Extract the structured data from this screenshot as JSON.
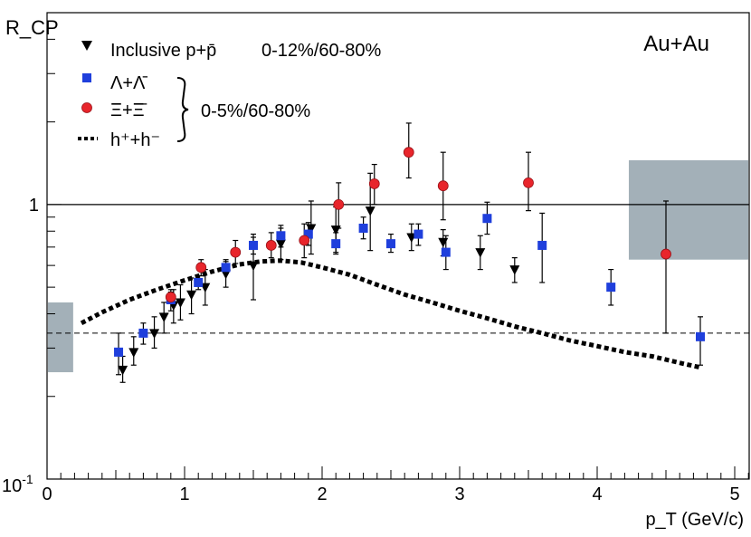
{
  "chart_data": {
    "type": "scatter",
    "title": "Au+Au",
    "xlabel": "p_T (GeV/c)",
    "ylabel": "R_CP",
    "xlim": [
      0,
      5.1
    ],
    "ylim": [
      0.1,
      5
    ],
    "yscale": "log",
    "x_ticks": [
      "0",
      "1",
      "2",
      "3",
      "4",
      "5"
    ],
    "y_ticks": [
      "10^-1",
      "1"
    ],
    "centrality_groups": [
      "0-12%/60-80%",
      "0-5%/60-80%"
    ],
    "series": [
      {
        "name": "Inclusive p+p̄",
        "marker": "down-triangle",
        "color": "#000000",
        "centrality": "0-12%/60-80%",
        "points": [
          {
            "x": 0.55,
            "y": 0.25,
            "ylo": 0.225,
            "yhi": 0.28
          },
          {
            "x": 0.63,
            "y": 0.29,
            "ylo": 0.26,
            "yhi": 0.33
          },
          {
            "x": 0.78,
            "y": 0.34,
            "ylo": 0.3,
            "yhi": 0.39
          },
          {
            "x": 0.85,
            "y": 0.39,
            "ylo": 0.34,
            "yhi": 0.44
          },
          {
            "x": 0.92,
            "y": 0.43,
            "ylo": 0.37,
            "yhi": 0.49
          },
          {
            "x": 0.97,
            "y": 0.44,
            "ylo": 0.38,
            "yhi": 0.51
          },
          {
            "x": 1.05,
            "y": 0.47,
            "ylo": 0.4,
            "yhi": 0.54
          },
          {
            "x": 1.15,
            "y": 0.5,
            "ylo": 0.43,
            "yhi": 0.58
          },
          {
            "x": 1.3,
            "y": 0.56,
            "ylo": 0.5,
            "yhi": 0.63
          },
          {
            "x": 1.5,
            "y": 0.6,
            "ylo": 0.45,
            "yhi": 0.78
          },
          {
            "x": 1.7,
            "y": 0.72,
            "ylo": 0.63,
            "yhi": 0.82
          },
          {
            "x": 1.92,
            "y": 0.82,
            "ylo": 0.66,
            "yhi": 1.03
          },
          {
            "x": 2.1,
            "y": 0.81,
            "ylo": 0.67,
            "yhi": 0.98
          },
          {
            "x": 2.35,
            "y": 0.95,
            "ylo": 0.68,
            "yhi": 1.3
          },
          {
            "x": 2.65,
            "y": 0.76,
            "ylo": 0.68,
            "yhi": 0.85
          },
          {
            "x": 2.88,
            "y": 0.73,
            "ylo": 0.65,
            "yhi": 0.81
          },
          {
            "x": 3.15,
            "y": 0.67,
            "ylo": 0.58,
            "yhi": 0.77
          },
          {
            "x": 3.4,
            "y": 0.58,
            "ylo": 0.52,
            "yhi": 0.64
          }
        ]
      },
      {
        "name": "Λ+Λ̄",
        "marker": "square",
        "color": "#1f3fdc",
        "centrality": "0-5%/60-80%",
        "points": [
          {
            "x": 0.52,
            "y": 0.29,
            "ylo": 0.24,
            "yhi": 0.34
          },
          {
            "x": 0.7,
            "y": 0.34,
            "ylo": 0.31,
            "yhi": 0.37
          },
          {
            "x": 0.9,
            "y": 0.45,
            "ylo": 0.41,
            "yhi": 0.49
          },
          {
            "x": 1.1,
            "y": 0.52,
            "ylo": 0.49,
            "yhi": 0.55
          },
          {
            "x": 1.3,
            "y": 0.59,
            "ylo": 0.56,
            "yhi": 0.62
          },
          {
            "x": 1.5,
            "y": 0.71,
            "ylo": 0.66,
            "yhi": 0.76
          },
          {
            "x": 1.7,
            "y": 0.77,
            "ylo": 0.7,
            "yhi": 0.84
          },
          {
            "x": 1.9,
            "y": 0.78,
            "ylo": 0.71,
            "yhi": 0.86
          },
          {
            "x": 2.1,
            "y": 0.72,
            "ylo": 0.66,
            "yhi": 0.79
          },
          {
            "x": 2.3,
            "y": 0.82,
            "ylo": 0.75,
            "yhi": 0.9
          },
          {
            "x": 2.5,
            "y": 0.72,
            "ylo": 0.67,
            "yhi": 0.78
          },
          {
            "x": 2.7,
            "y": 0.78,
            "ylo": 0.71,
            "yhi": 0.85
          },
          {
            "x": 2.9,
            "y": 0.67,
            "ylo": 0.58,
            "yhi": 0.77
          },
          {
            "x": 3.2,
            "y": 0.89,
            "ylo": 0.78,
            "yhi": 1.02
          },
          {
            "x": 3.6,
            "y": 0.71,
            "ylo": 0.52,
            "yhi": 0.93
          },
          {
            "x": 4.1,
            "y": 0.5,
            "ylo": 0.43,
            "yhi": 0.58
          },
          {
            "x": 4.75,
            "y": 0.33,
            "ylo": 0.26,
            "yhi": 0.39
          }
        ]
      },
      {
        "name": "Ξ+Ξ̄",
        "marker": "circle",
        "color": "#e8252b",
        "centrality": "0-5%/60-80%",
        "points": [
          {
            "x": 0.9,
            "y": 0.46,
            "ylo": 0.44,
            "yhi": 0.48
          },
          {
            "x": 1.12,
            "y": 0.59,
            "ylo": 0.55,
            "yhi": 0.63
          },
          {
            "x": 1.37,
            "y": 0.67,
            "ylo": 0.61,
            "yhi": 0.74
          },
          {
            "x": 1.63,
            "y": 0.71,
            "ylo": 0.64,
            "yhi": 0.79
          },
          {
            "x": 1.87,
            "y": 0.74,
            "ylo": 0.64,
            "yhi": 0.85
          },
          {
            "x": 2.12,
            "y": 1.0,
            "ylo": 0.82,
            "yhi": 1.2
          },
          {
            "x": 2.38,
            "y": 1.19,
            "ylo": 1.0,
            "yhi": 1.4
          },
          {
            "x": 2.63,
            "y": 1.55,
            "ylo": 1.25,
            "yhi": 1.98
          },
          {
            "x": 2.88,
            "y": 1.17,
            "ylo": 0.88,
            "yhi": 1.55
          },
          {
            "x": 3.5,
            "y": 1.2,
            "ylo": 0.95,
            "yhi": 1.55
          },
          {
            "x": 4.5,
            "y": 0.66,
            "ylo": 0.34,
            "yhi": 1.03
          }
        ]
      },
      {
        "name": "h⁺+h⁻",
        "marker": "dashed-line",
        "color": "#000000",
        "centrality": "0-5%/60-80%",
        "points": [
          {
            "x": 0.25,
            "y": 0.37
          },
          {
            "x": 0.4,
            "y": 0.405
          },
          {
            "x": 0.6,
            "y": 0.45
          },
          {
            "x": 0.8,
            "y": 0.49
          },
          {
            "x": 1.0,
            "y": 0.53
          },
          {
            "x": 1.2,
            "y": 0.57
          },
          {
            "x": 1.4,
            "y": 0.605
          },
          {
            "x": 1.55,
            "y": 0.62
          },
          {
            "x": 1.7,
            "y": 0.625
          },
          {
            "x": 1.85,
            "y": 0.615
          },
          {
            "x": 2.0,
            "y": 0.59
          },
          {
            "x": 2.2,
            "y": 0.555
          },
          {
            "x": 2.4,
            "y": 0.51
          },
          {
            "x": 2.6,
            "y": 0.47
          },
          {
            "x": 2.8,
            "y": 0.44
          },
          {
            "x": 3.0,
            "y": 0.41
          },
          {
            "x": 3.2,
            "y": 0.385
          },
          {
            "x": 3.4,
            "y": 0.36
          },
          {
            "x": 3.6,
            "y": 0.34
          },
          {
            "x": 3.8,
            "y": 0.32
          },
          {
            "x": 4.0,
            "y": 0.305
          },
          {
            "x": 4.2,
            "y": 0.29
          },
          {
            "x": 4.4,
            "y": 0.28
          },
          {
            "x": 4.6,
            "y": 0.265
          },
          {
            "x": 4.75,
            "y": 0.255
          }
        ]
      }
    ],
    "reference_lines": [
      {
        "y": 1.0,
        "style": "solid"
      },
      {
        "y": 0.34,
        "style": "dashed"
      }
    ],
    "systematic_bands": [
      {
        "x": [
          0.0,
          0.19
        ],
        "y": [
          0.245,
          0.44
        ],
        "color": "#a3b0b8"
      },
      {
        "x": [
          4.23,
          5.13
        ],
        "y": [
          0.63,
          1.45
        ],
        "color": "#a3b0b8"
      }
    ]
  }
}
